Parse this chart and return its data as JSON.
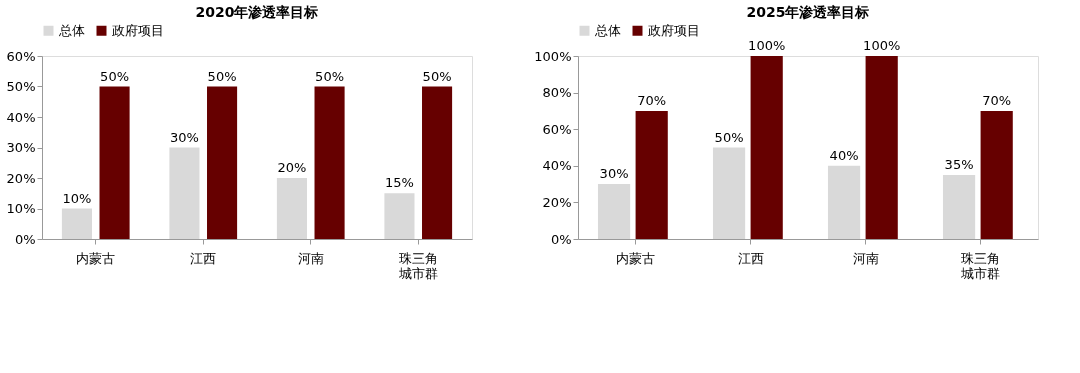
{
  "chart_data": [
    {
      "type": "bar",
      "title": "2020年渗透率目标",
      "categories": [
        "内蒙古",
        "江西",
        "河南",
        "珠三角城市群"
      ],
      "legend": "top",
      "ylim": [
        0,
        60
      ],
      "yticks": [
        {
          "value": 0,
          "label": "0%"
        },
        {
          "value": 10,
          "label": "10%"
        },
        {
          "value": 20,
          "label": "20%"
        },
        {
          "value": 30,
          "label": "30%"
        },
        {
          "value": 40,
          "label": "40%"
        },
        {
          "value": 50,
          "label": "50%"
        },
        {
          "value": 60,
          "label": "60%"
        }
      ],
      "series": [
        {
          "name": "总体",
          "color": "#d9d9d9",
          "values": [
            10,
            30,
            20,
            15
          ],
          "value_labels": [
            "10%",
            "30%",
            "20%",
            "15%"
          ]
        },
        {
          "name": "政府项目",
          "color": "#660000",
          "values": [
            50,
            50,
            50,
            50
          ],
          "value_labels": [
            "50%",
            "50%",
            "50%",
            "50%"
          ]
        }
      ]
    },
    {
      "type": "bar",
      "title": "2025年渗透率目标",
      "categories": [
        "内蒙古",
        "江西",
        "河南",
        "珠三角城市群"
      ],
      "legend": "top",
      "ylim": [
        0,
        100
      ],
      "yticks": [
        {
          "value": 0,
          "label": "0%"
        },
        {
          "value": 20,
          "label": "20%"
        },
        {
          "value": 40,
          "label": "40%"
        },
        {
          "value": 60,
          "label": "60%"
        },
        {
          "value": 80,
          "label": "80%"
        },
        {
          "value": 100,
          "label": "100%"
        }
      ],
      "series": [
        {
          "name": "总体",
          "color": "#d9d9d9",
          "values": [
            30,
            50,
            40,
            35
          ],
          "value_labels": [
            "30%",
            "50%",
            "40%",
            "35%"
          ]
        },
        {
          "name": "政府项目",
          "color": "#660000",
          "values": [
            70,
            100,
            100,
            70
          ],
          "value_labels": [
            "70%",
            "100%",
            "100%",
            "70%"
          ]
        }
      ]
    }
  ]
}
